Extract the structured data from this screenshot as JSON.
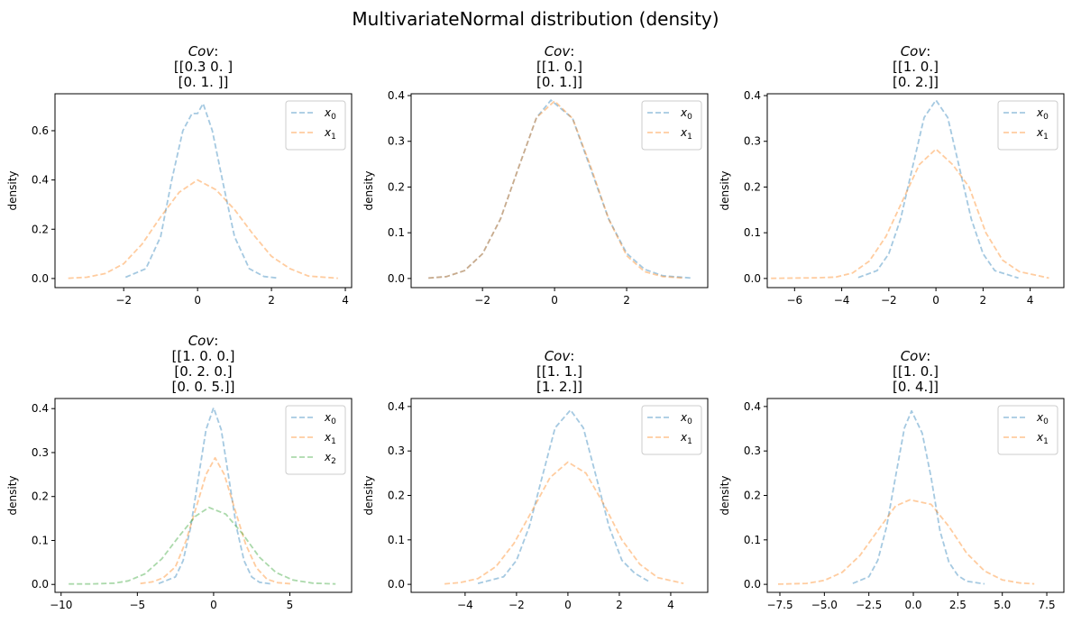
{
  "title": "MultivariateNormal distribution (density)",
  "chart_data": [
    {
      "type": "line",
      "title_prefix": "Cov",
      "title_lines": [
        "[[0.3 0. ]",
        " [0.  1. ]]"
      ],
      "ylabel": "density",
      "xlim": [
        -3.86,
        4.17
      ],
      "ylim": [
        -0.037,
        0.75
      ],
      "xticks": [
        -2,
        0,
        2,
        4
      ],
      "xtick_labels": [
        "−2",
        "0",
        "2",
        "4"
      ],
      "yticks": [
        0,
        0.2,
        0.4,
        0.6
      ],
      "ytick_labels": [
        "0.0",
        "0.2",
        "0.4",
        "0.6"
      ],
      "legend": "top-right",
      "series": [
        {
          "name": "x0",
          "color": "#1f77b4",
          "x": [
            -1.95,
            -1.4,
            -1.0,
            -0.7,
            -0.4,
            -0.15,
            0,
            0.15,
            0.4,
            0.7,
            1.0,
            1.4,
            1.8,
            2.15
          ],
          "y": [
            0.005,
            0.04,
            0.17,
            0.4,
            0.6,
            0.67,
            0.67,
            0.71,
            0.6,
            0.38,
            0.17,
            0.04,
            0.008,
            0.002
          ]
        },
        {
          "name": "x1",
          "color": "#ff7f0e",
          "x": [
            -3.5,
            -3,
            -2.5,
            -2,
            -1.5,
            -1,
            -0.5,
            0,
            0.5,
            1,
            1.5,
            2,
            2.5,
            3,
            3.8
          ],
          "y": [
            0.001,
            0.005,
            0.02,
            0.06,
            0.14,
            0.25,
            0.35,
            0.4,
            0.36,
            0.28,
            0.18,
            0.09,
            0.04,
            0.01,
            0.001
          ]
        }
      ]
    },
    {
      "type": "line",
      "title_prefix": "Cov",
      "title_lines": [
        "[[1. 0.]",
        " [0. 1.]]"
      ],
      "ylabel": "density",
      "xlim": [
        -3.98,
        4.25
      ],
      "ylim": [
        -0.02,
        0.404
      ],
      "xticks": [
        -2,
        0,
        2
      ],
      "xtick_labels": [
        "−2",
        "0",
        "2"
      ],
      "yticks": [
        0,
        0.1,
        0.2,
        0.3,
        0.4
      ],
      "ytick_labels": [
        "0.0",
        "0.1",
        "0.2",
        "0.3",
        "0.4"
      ],
      "legend": "top-right",
      "series": [
        {
          "name": "x0",
          "color": "#1f77b4",
          "x": [
            -3.5,
            -3,
            -2.5,
            -2,
            -1.5,
            -1,
            -0.5,
            -0.1,
            0.5,
            1,
            1.5,
            2,
            2.5,
            3,
            3.8
          ],
          "y": [
            0.001,
            0.004,
            0.017,
            0.054,
            0.13,
            0.242,
            0.352,
            0.39,
            0.35,
            0.24,
            0.13,
            0.055,
            0.02,
            0.006,
            0.001
          ]
        },
        {
          "name": "x1",
          "color": "#ff7f0e",
          "x": [
            -3.5,
            -3,
            -2.5,
            -2,
            -1.5,
            -1,
            -0.5,
            0,
            0.5,
            1,
            1.5,
            2,
            2.5,
            3,
            3.6
          ],
          "y": [
            0.001,
            0.004,
            0.017,
            0.054,
            0.13,
            0.242,
            0.352,
            0.388,
            0.35,
            0.245,
            0.13,
            0.05,
            0.015,
            0.004,
            0.001
          ]
        }
      ]
    },
    {
      "type": "line",
      "title_prefix": "Cov",
      "title_lines": [
        "[[1. 0.]",
        " [0. 2.]]"
      ],
      "ylabel": "density",
      "xlim": [
        -7.16,
        5.43
      ],
      "ylim": [
        -0.02,
        0.404
      ],
      "xticks": [
        -6,
        -4,
        -2,
        0,
        2,
        4
      ],
      "xtick_labels": [
        "−6",
        "−4",
        "−2",
        "0",
        "2",
        "4"
      ],
      "yticks": [
        0,
        0.1,
        0.2,
        0.3,
        0.4
      ],
      "ytick_labels": [
        "0.0",
        "0.1",
        "0.2",
        "0.3",
        "0.4"
      ],
      "legend": "top-right",
      "series": [
        {
          "name": "x0",
          "color": "#1f77b4",
          "x": [
            -3.3,
            -2.5,
            -2,
            -1.5,
            -1,
            -0.5,
            0,
            0.5,
            1,
            1.5,
            2,
            2.5,
            3.5
          ],
          "y": [
            0.002,
            0.017,
            0.054,
            0.13,
            0.242,
            0.352,
            0.39,
            0.352,
            0.242,
            0.13,
            0.054,
            0.017,
            0.001
          ]
        },
        {
          "name": "x1",
          "color": "#ff7f0e",
          "x": [
            -7,
            -5,
            -4.24,
            -3.54,
            -2.83,
            -2.12,
            -1.41,
            -0.71,
            0,
            0.71,
            1.41,
            2.12,
            2.83,
            3.54,
            4.8
          ],
          "y": [
            0.0003,
            0.0015,
            0.003,
            0.012,
            0.038,
            0.092,
            0.171,
            0.249,
            0.283,
            0.249,
            0.2,
            0.1,
            0.04,
            0.015,
            0.001
          ]
        }
      ]
    },
    {
      "type": "line",
      "title_prefix": "Cov",
      "title_lines": [
        "[[1. 0. 0.]",
        " [0. 2. 0.]",
        " [0. 0. 5.]]"
      ],
      "ylabel": "density",
      "xlim": [
        -10.4,
        9.05
      ],
      "ylim": [
        -0.018,
        0.423
      ],
      "xticks": [
        -10,
        -5,
        0,
        5
      ],
      "xtick_labels": [
        "−10",
        "−5",
        "0",
        "5"
      ],
      "yticks": [
        0,
        0.1,
        0.2,
        0.3,
        0.4
      ],
      "ytick_labels": [
        "0.0",
        "0.1",
        "0.2",
        "0.3",
        "0.4"
      ],
      "legend": "top-right",
      "series": [
        {
          "name": "x0",
          "color": "#1f77b4",
          "x": [
            -3.6,
            -2.5,
            -2,
            -1.5,
            -1,
            -0.5,
            0,
            0.5,
            1,
            1.5,
            2,
            2.5,
            3,
            3.8
          ],
          "y": [
            0.002,
            0.017,
            0.054,
            0.13,
            0.242,
            0.352,
            0.402,
            0.352,
            0.242,
            0.13,
            0.054,
            0.017,
            0.005,
            0.001
          ]
        },
        {
          "name": "x1",
          "color": "#ff7f0e",
          "x": [
            -4.8,
            -4,
            -3.3,
            -2.5,
            -1.8,
            -1.1,
            -0.5,
            0.1,
            0.7,
            1.4,
            2.1,
            2.8,
            3.5,
            4.2,
            5.2
          ],
          "y": [
            0.002,
            0.006,
            0.015,
            0.04,
            0.1,
            0.18,
            0.25,
            0.288,
            0.25,
            0.17,
            0.092,
            0.038,
            0.012,
            0.004,
            0.001
          ]
        },
        {
          "name": "x2",
          "color": "#2ca02c",
          "x": [
            -9.5,
            -8,
            -6.5,
            -5.6,
            -4.5,
            -3.4,
            -2.3,
            -1.2,
            -0.3,
            0.8,
            1.9,
            3,
            4.1,
            5.2,
            6.5,
            8
          ],
          "y": [
            0.001,
            0.001,
            0.003,
            0.008,
            0.024,
            0.058,
            0.108,
            0.155,
            0.175,
            0.16,
            0.115,
            0.062,
            0.027,
            0.01,
            0.003,
            0.001
          ]
        }
      ]
    },
    {
      "type": "line",
      "title_prefix": "Cov",
      "title_lines": [
        "[[1. 1.]",
        " [1. 2.]]"
      ],
      "ylabel": "density",
      "xlim": [
        -6.1,
        5.44
      ],
      "ylim": [
        -0.018,
        0.418
      ],
      "xticks": [
        -4,
        -2,
        0,
        2,
        4
      ],
      "xtick_labels": [
        "−4",
        "−2",
        "0",
        "2",
        "4"
      ],
      "yticks": [
        0,
        0.1,
        0.2,
        0.3,
        0.4
      ],
      "ytick_labels": [
        "0.0",
        "0.1",
        "0.2",
        "0.3",
        "0.4"
      ],
      "legend": "top-right",
      "series": [
        {
          "name": "x0",
          "color": "#1f77b4",
          "x": [
            -3.5,
            -2.5,
            -2,
            -1.5,
            -1,
            -0.5,
            0.1,
            0.6,
            1.1,
            1.6,
            2.1,
            2.6,
            3.2
          ],
          "y": [
            0.002,
            0.017,
            0.054,
            0.13,
            0.242,
            0.352,
            0.392,
            0.352,
            0.242,
            0.13,
            0.054,
            0.025,
            0.005
          ]
        },
        {
          "name": "x1",
          "color": "#ff7f0e",
          "x": [
            -4.8,
            -4.2,
            -3.5,
            -2.8,
            -2.1,
            -1.4,
            -0.7,
            0,
            0.7,
            1.4,
            2.1,
            2.8,
            3.5,
            4.5
          ],
          "y": [
            0.001,
            0.004,
            0.013,
            0.04,
            0.092,
            0.165,
            0.24,
            0.275,
            0.25,
            0.18,
            0.1,
            0.045,
            0.015,
            0.002
          ]
        }
      ]
    },
    {
      "type": "line",
      "title_prefix": "Cov",
      "title_lines": [
        "[[1. 0.]",
        " [0. 4.]]"
      ],
      "ylabel": "density",
      "xlim": [
        -8.21,
        8.46
      ],
      "ylim": [
        -0.018,
        0.418
      ],
      "xticks": [
        -7.5,
        -5,
        -2.5,
        0,
        2.5,
        5,
        7.5
      ],
      "xtick_labels": [
        "−7.5",
        "−5.0",
        "−2.5",
        "0.0",
        "2.5",
        "5.0",
        "7.5"
      ],
      "yticks": [
        0,
        0.1,
        0.2,
        0.3,
        0.4
      ],
      "ytick_labels": [
        "0.0",
        "0.1",
        "0.2",
        "0.3",
        "0.4"
      ],
      "legend": "top-right",
      "series": [
        {
          "name": "x0",
          "color": "#1f77b4",
          "x": [
            -3.4,
            -2.5,
            -2,
            -1.5,
            -1,
            -0.5,
            -0.1,
            0.5,
            1,
            1.5,
            2,
            2.5,
            3,
            4
          ],
          "y": [
            0.002,
            0.017,
            0.054,
            0.13,
            0.242,
            0.352,
            0.39,
            0.34,
            0.24,
            0.12,
            0.05,
            0.02,
            0.007,
            0.001
          ]
        },
        {
          "name": "x1",
          "color": "#ff7f0e",
          "x": [
            -7.6,
            -6,
            -5,
            -4,
            -3,
            -2,
            -1,
            -0.2,
            1,
            2,
            3,
            4,
            5,
            6,
            6.8
          ],
          "y": [
            0.0004,
            0.002,
            0.009,
            0.027,
            0.065,
            0.121,
            0.176,
            0.19,
            0.18,
            0.13,
            0.07,
            0.03,
            0.01,
            0.003,
            0.001
          ]
        }
      ]
    }
  ]
}
